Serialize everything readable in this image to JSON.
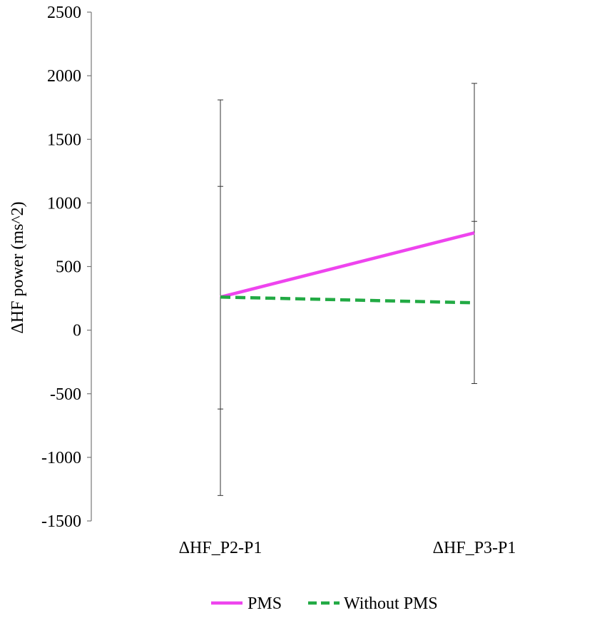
{
  "chart_data": {
    "type": "line",
    "title": "",
    "xlabel": "",
    "ylabel": "ΔHF power (ms^2)",
    "categories": [
      "ΔHF_P2-P1",
      "ΔHF_P3-P1"
    ],
    "ylim": [
      -1500,
      2500
    ],
    "yticks": [
      -1500,
      -1000,
      -500,
      0,
      500,
      1000,
      1500,
      2000,
      2500
    ],
    "grid": false,
    "legend_position": "bottom-center",
    "series": [
      {
        "name": "PMS",
        "values": [
          260,
          765
        ],
        "error": [
          {
            "low": -1300,
            "high": 1810
          },
          {
            "low": -420,
            "high": 1940
          }
        ],
        "color": "#ee44ee",
        "line_style": "solid"
      },
      {
        "name": "Without PMS",
        "values": [
          260,
          215
        ],
        "error": [
          {
            "low": -620,
            "high": 1130
          },
          {
            "low": -420,
            "high": 855
          }
        ],
        "color": "#22aa44",
        "line_style": "dashed"
      }
    ]
  }
}
